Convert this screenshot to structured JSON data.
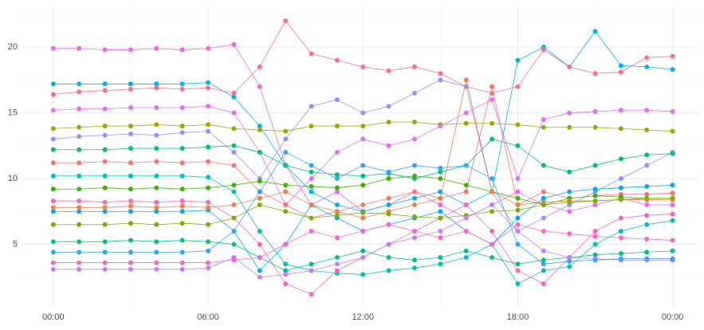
{
  "chart_data": {
    "type": "line",
    "x": [
      0,
      1,
      2,
      3,
      4,
      5,
      6,
      7,
      8,
      9,
      10,
      11,
      12,
      13,
      14,
      15,
      16,
      17,
      18,
      19,
      20,
      21,
      22,
      23,
      24
    ],
    "xlim": [
      -1.2,
      25
    ],
    "xticks": [
      {
        "value": 0,
        "label": "00:00"
      },
      {
        "value": 6,
        "label": "06:00"
      },
      {
        "value": 12,
        "label": "12:00"
      },
      {
        "value": 18,
        "label": "18:00"
      },
      {
        "value": 24,
        "label": "00:00"
      }
    ],
    "minor_xticks": [
      3,
      9,
      15,
      21
    ],
    "ylim": [
      0.3,
      23.1
    ],
    "yticks": [
      5,
      10,
      15,
      20
    ],
    "minor_yticks": [
      2.5,
      7.5,
      12.5,
      17.5,
      22.5
    ],
    "grid": true,
    "series": [
      {
        "color": "#F564E3",
        "values": [
          19.9,
          19.9,
          19.8,
          19.8,
          19.9,
          19.8,
          19.9,
          20.2,
          17,
          11,
          8,
          9,
          7.5,
          8,
          9,
          8,
          7,
          8,
          9,
          8,
          7.5,
          8,
          8.5,
          8,
          8
        ]
      },
      {
        "color": "#00B0F6",
        "values": [
          17.2,
          17.2,
          17.2,
          17.2,
          17.2,
          17.2,
          17.3,
          16.2,
          14,
          11,
          9,
          8,
          7.5,
          8,
          8.5,
          9,
          8,
          9,
          19,
          20,
          18.5,
          21.2,
          18.6,
          18.5,
          18.3
        ]
      },
      {
        "color": "#FF6C91",
        "values": [
          16.4,
          16.6,
          16.7,
          16.8,
          16.9,
          16.8,
          16.9,
          16.5,
          18.5,
          22,
          19.5,
          19,
          18.5,
          18.2,
          18.5,
          18,
          17,
          16.5,
          17,
          19.8,
          18.5,
          18,
          18.1,
          19.2,
          19.3
        ]
      },
      {
        "color": "#9590FF",
        "values": [
          13,
          13.2,
          13.3,
          13.4,
          13.3,
          13.5,
          13.6,
          12,
          10,
          13,
          15.5,
          16,
          15,
          15.5,
          16.5,
          17.5,
          17,
          9,
          6,
          7,
          8,
          9,
          10,
          11,
          12
        ]
      },
      {
        "color": "#A3A500",
        "values": [
          13.8,
          13.9,
          14,
          14,
          14.1,
          14,
          14.1,
          13.8,
          13.7,
          13.6,
          14,
          14,
          14,
          14.3,
          14.3,
          14.1,
          14.2,
          14.2,
          14.1,
          13.9,
          13.9,
          13.9,
          13.8,
          13.7,
          13.6
        ]
      },
      {
        "color": "#E76BF3",
        "values": [
          15.2,
          15.3,
          15.3,
          15.4,
          15.4,
          15.4,
          15.5,
          15,
          12,
          8,
          10,
          12,
          13,
          12.5,
          13,
          14,
          15,
          16,
          10,
          14.5,
          15,
          15.1,
          15.2,
          15.2,
          15.1
        ]
      },
      {
        "color": "#00BF7D",
        "values": [
          12.2,
          12.2,
          12.2,
          12.3,
          12.3,
          12.3,
          12.4,
          12.5,
          12,
          11,
          10.5,
          10.3,
          10.2,
          10.4,
          10,
          10.5,
          11,
          13,
          12.5,
          11,
          10.5,
          11,
          11.5,
          11.8,
          11.9
        ]
      },
      {
        "color": "#F8766D",
        "values": [
          11.2,
          11.2,
          11.3,
          11.2,
          11.3,
          11.2,
          11.3,
          11,
          9,
          8,
          7,
          7.5,
          8,
          8.5,
          9,
          8.5,
          9,
          17,
          8,
          9,
          8.5,
          8.7,
          8.8,
          8.8,
          8.9
        ]
      },
      {
        "color": "#00BFC4",
        "values": [
          10.2,
          10.2,
          10.2,
          10.2,
          10.2,
          10.2,
          10.1,
          9,
          6,
          3.5,
          3,
          2.8,
          2.7,
          3,
          3.2,
          3.5,
          4,
          5,
          2,
          3,
          3.3,
          5,
          6,
          6.5,
          6.8
        ]
      },
      {
        "color": "#39B600",
        "values": [
          9.2,
          9.2,
          9.3,
          9.2,
          9.3,
          9.2,
          9.3,
          9.5,
          9.8,
          9.5,
          9.4,
          9.3,
          9.5,
          10,
          10.2,
          10,
          9.5,
          9,
          8.5,
          8,
          8.5,
          8.7,
          8.6,
          8.5,
          8.5
        ]
      },
      {
        "color": "#FF62BC",
        "values": [
          8.3,
          8.3,
          8.2,
          8.3,
          8.2,
          8.3,
          8.2,
          7,
          5,
          2,
          1.2,
          3,
          4,
          5,
          6,
          7,
          8,
          6,
          3,
          2,
          4,
          6,
          7,
          7.2,
          7.3
        ]
      },
      {
        "color": "#00A9FF",
        "values": [
          7.5,
          7.5,
          7.5,
          7.5,
          7.5,
          7.5,
          7.6,
          6,
          3,
          5,
          8,
          7,
          6,
          6.5,
          7,
          7.5,
          6,
          5,
          7,
          8.5,
          9,
          9.2,
          9.3,
          9.4,
          9.5
        ]
      },
      {
        "color": "#EF7F49",
        "values": [
          7.8,
          7.8,
          7.8,
          7.9,
          7.8,
          7.9,
          7.8,
          8,
          8.5,
          9,
          8,
          7.5,
          7,
          7.5,
          8,
          8.5,
          17.5,
          9,
          8,
          8.2,
          8.3,
          8.3,
          8.4,
          8.4,
          8.4
        ]
      },
      {
        "color": "#7CAE00",
        "values": [
          6.5,
          6.5,
          6.5,
          6.6,
          6.5,
          6.6,
          6.5,
          7,
          8,
          7.5,
          7,
          7.2,
          7.4,
          7.3,
          7.1,
          7,
          7.2,
          7.5,
          7.6,
          8,
          8.2,
          8.3,
          8.4,
          8.5,
          8.5
        ]
      },
      {
        "color": "#00C08B",
        "values": [
          5.2,
          5.2,
          5.2,
          5.3,
          5.2,
          5.3,
          5.2,
          5,
          4,
          3,
          3.5,
          4,
          4.5,
          4,
          3.8,
          4,
          4.5,
          4,
          3.5,
          3.8,
          4,
          4.2,
          4.3,
          4.4,
          4.5
        ]
      },
      {
        "color": "#C77CFF",
        "values": [
          3.1,
          3.1,
          3.1,
          3.1,
          3.1,
          3.1,
          3.2,
          4,
          2.5,
          2.7,
          3,
          3.5,
          4,
          5,
          5.5,
          6,
          7,
          8,
          6,
          4.5,
          4,
          3.9,
          3.8,
          3.8,
          3.8
        ]
      },
      {
        "color": "#35A2FF",
        "values": [
          4.4,
          4.4,
          4.4,
          4.4,
          4.4,
          4.4,
          4.5,
          6,
          9,
          12,
          11,
          10,
          11,
          10.5,
          11,
          10.8,
          11,
          10,
          5,
          3.5,
          3.7,
          3.8,
          3.9,
          3.9,
          3.9
        ]
      },
      {
        "color": "#FD61D1",
        "values": [
          3.6,
          3.6,
          3.6,
          3.6,
          3.6,
          3.6,
          3.6,
          3.8,
          4,
          5,
          6,
          5.5,
          6,
          6.5,
          6,
          5.5,
          6,
          5,
          6.5,
          6,
          5.8,
          5.6,
          5.5,
          5.4,
          5.3
        ]
      }
    ]
  }
}
